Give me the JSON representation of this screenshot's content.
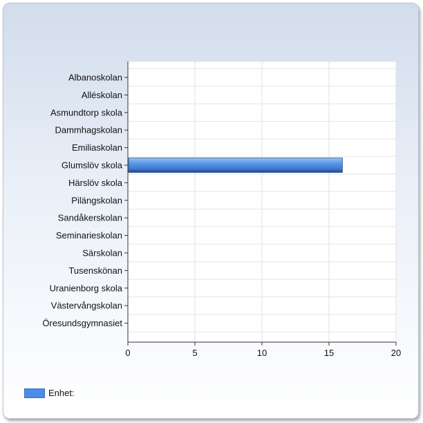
{
  "chart_data": {
    "type": "bar",
    "orientation": "horizontal",
    "categories": [
      "Albanoskolan",
      "Alléskolan",
      "Asmundtorp skola",
      "Dammhagskolan",
      "Emiliaskolan",
      "Glumslöv skola",
      "Härslöv skola",
      "Pilängskolan",
      "Sandåkerskolan",
      "Seminarieskolan",
      "Särskolan",
      "Tusenskönan",
      "Uranienborg skola",
      "Västervångskolan",
      "Öresundsgymnasiet"
    ],
    "series": [
      {
        "name": "Enhet:",
        "color": "#4a8de6",
        "values": [
          0,
          0,
          0,
          0,
          0,
          16,
          0,
          0,
          0,
          0,
          0,
          0,
          0,
          0,
          0
        ]
      }
    ],
    "xlim": [
      0,
      20
    ],
    "xticks": [
      "0",
      "5",
      "10",
      "15",
      "20"
    ],
    "grid": true,
    "legend_position": "bottom-left"
  }
}
